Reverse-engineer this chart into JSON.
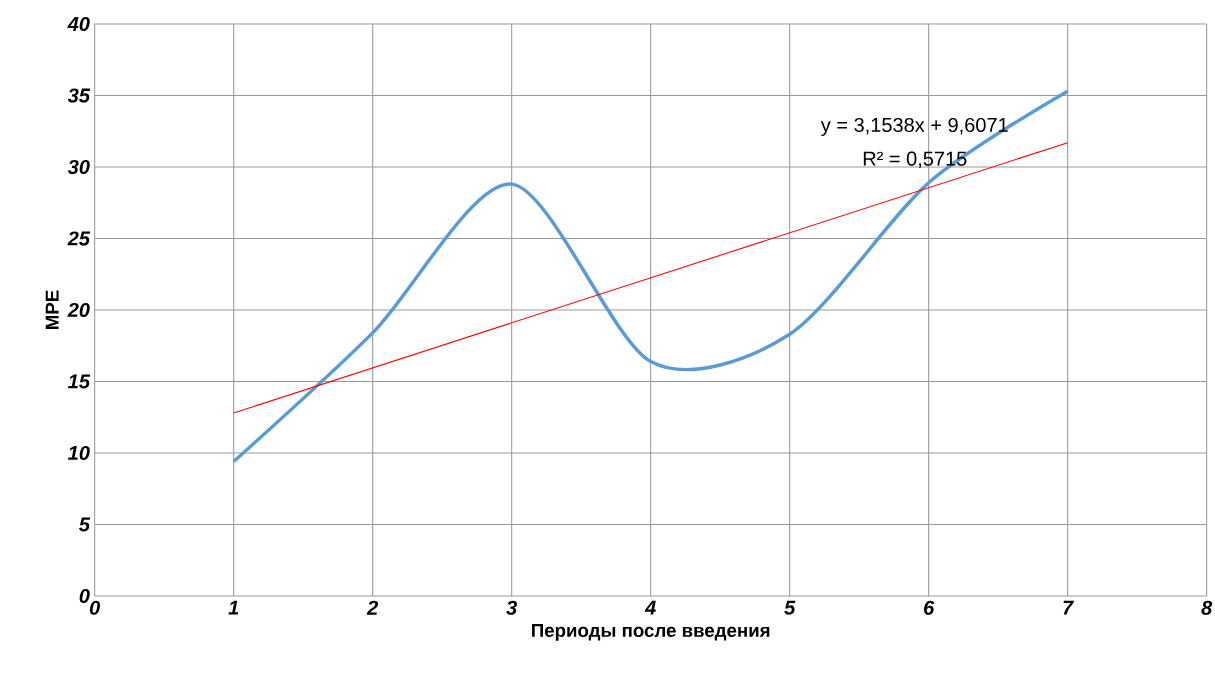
{
  "chart_data": {
    "type": "line",
    "xlabel": "Периоды после введения",
    "ylabel": "MPE",
    "x": [
      1,
      2,
      3,
      4,
      5,
      6,
      7
    ],
    "series": [
      {
        "color": "#5b9bd5",
        "values": [
          9.4,
          18.4,
          28.8,
          16.4,
          18.3,
          28.9,
          35.3
        ]
      },
      {
        "type": "line",
        "color": "#ff0000",
        "x": [
          1,
          7
        ],
        "values": [
          12.8,
          31.7
        ]
      }
    ],
    "annotations": [
      "y = 3,1538x + 9,6071",
      "R² = 0,5715"
    ],
    "xlim": [
      0,
      8
    ],
    "xticks": [
      0,
      1,
      2,
      3,
      4,
      5,
      6,
      7,
      8
    ],
    "ylim": [
      0,
      40
    ],
    "yticks": [
      0,
      5,
      10,
      15,
      20,
      25,
      30,
      35,
      40
    ],
    "grid": true,
    "marker": "none"
  }
}
